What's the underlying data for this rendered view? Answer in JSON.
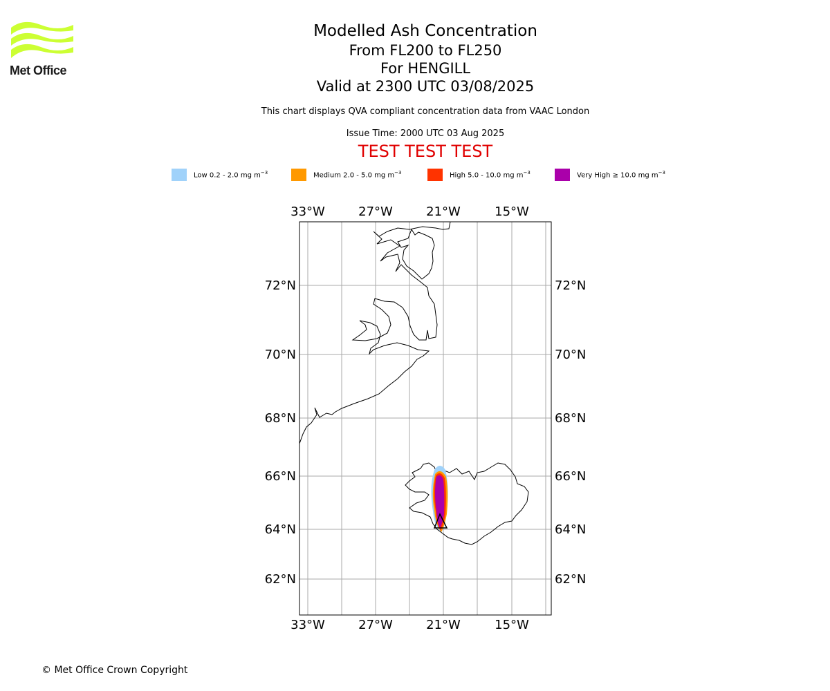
{
  "header": {
    "title": "Modelled Ash Concentration",
    "levels": "From FL200 to FL250",
    "volcano": "For HENGILL",
    "valid": "Valid at 2300 UTC 03/08/2025",
    "description": "This chart displays QVA compliant concentration data from VAAC London",
    "issue_time": "Issue Time: 2000 UTC 03 Aug 2025",
    "test_banner": "TEST TEST TEST"
  },
  "logo": {
    "text": "Met Office",
    "color": "#ccff33"
  },
  "legend": [
    {
      "text": "Low 0.2 - 2.0 mg m",
      "color": "#a0d2fa"
    },
    {
      "text": "Medium 2.0 - 5.0 mg m",
      "color": "#ff9900"
    },
    {
      "text": "High 5.0 - 10.0 mg m",
      "color": "#ff3300"
    },
    {
      "text": "Very High  ≥  10.0 mg m",
      "color": "#aa00aa"
    }
  ],
  "legend_unit_exponent": "−3",
  "map": {
    "lon_labels": [
      "33°W",
      "27°W",
      "21°W",
      "15°W"
    ],
    "lat_labels": [
      "72°N",
      "70°N",
      "68°N",
      "66°N",
      "64°N",
      "62°N"
    ]
  },
  "copyright": "© Met Office Crown Copyright"
}
